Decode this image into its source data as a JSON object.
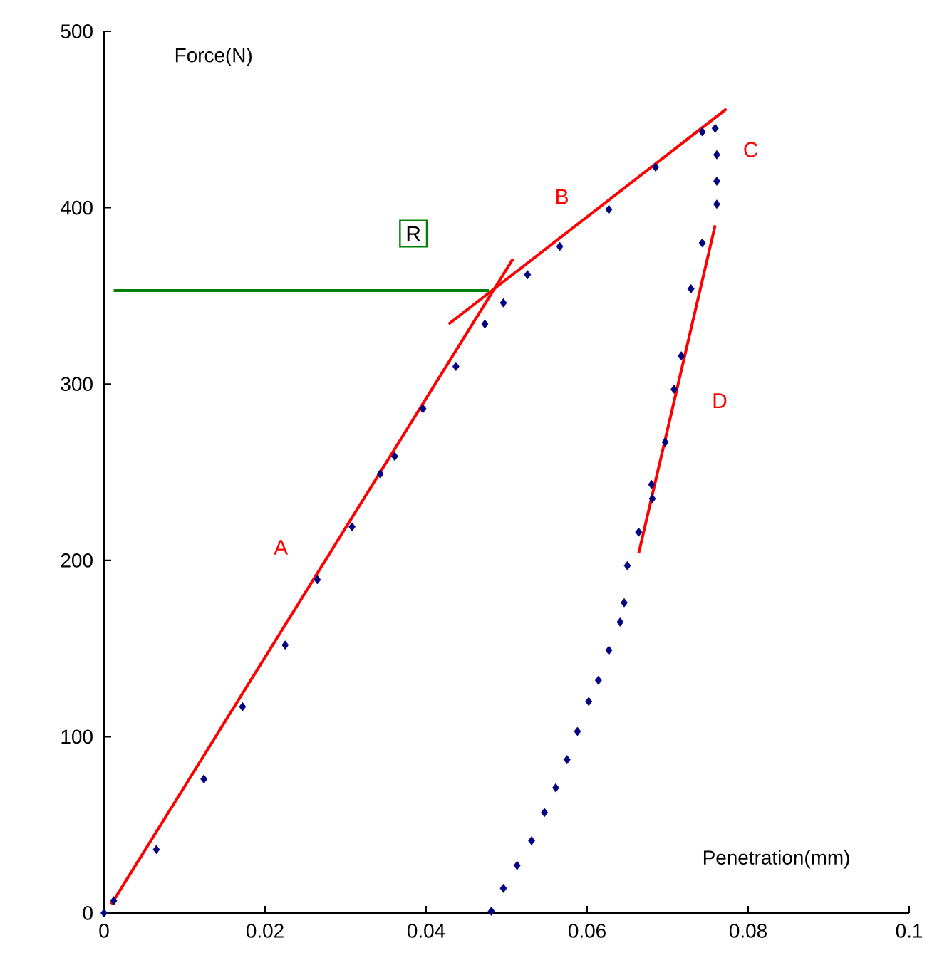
{
  "chart_data": {
    "type": "scatter",
    "xlabel": "Penetration(mm)",
    "ylabel": "Force(N)",
    "xlim": [
      0,
      0.1
    ],
    "ylim": [
      0,
      500
    ],
    "xticks": [
      0,
      0.02,
      0.04,
      0.06,
      0.08,
      0.1
    ],
    "yticks": [
      0,
      100,
      200,
      300,
      400,
      500
    ],
    "grid": false,
    "marker": "diamond",
    "series": [
      {
        "color": "#000080",
        "x": [
          0,
          0.0012,
          0.0065,
          0.0124,
          0.0172,
          0.0225,
          0.0265,
          0.0308,
          0.0343,
          0.0361,
          0.0396,
          0.0437,
          0.0473,
          0.0496,
          0.0526,
          0.0566,
          0.0627,
          0.0685,
          0.0743,
          0.0759,
          0.0761,
          0.0761,
          0.0761,
          0.0743,
          0.0729,
          0.0717,
          0.0708,
          0.0697,
          0.0681,
          0.068,
          0.0664,
          0.065,
          0.0646,
          0.0641,
          0.0627,
          0.0614,
          0.0602,
          0.0588,
          0.0575,
          0.0561,
          0.0547,
          0.0531,
          0.0513,
          0.0496,
          0.0481
        ],
        "values": [
          0,
          7,
          36,
          76,
          117,
          152,
          189,
          219,
          249,
          259,
          286,
          310,
          334,
          346,
          362,
          378,
          399,
          423,
          443,
          445,
          430,
          415,
          402,
          380,
          354,
          316,
          297,
          267,
          235,
          243,
          216,
          197,
          176,
          165,
          149,
          132,
          120,
          103,
          87,
          71,
          57,
          41,
          27,
          14,
          1
        ]
      },
      {
        "type": "line",
        "name": "A",
        "color": "#ff0000",
        "marker": "none",
        "x": [
          0.0009,
          0.0508
        ],
        "values": [
          5,
          371
        ]
      },
      {
        "type": "line",
        "name": "B",
        "color": "#ff0000",
        "marker": "none",
        "x": [
          0.0428,
          0.0773
        ],
        "values": [
          334,
          456
        ]
      },
      {
        "type": "line",
        "name": "D",
        "color": "#ff0000",
        "marker": "none",
        "x": [
          0.0664,
          0.0759
        ],
        "values": [
          204,
          390
        ]
      },
      {
        "type": "line",
        "name": "R",
        "color": "#008000",
        "marker": "none",
        "x": [
          0.0012,
          0.0478
        ],
        "values": [
          353,
          353
        ]
      }
    ],
    "annotations": [
      {
        "text": "C",
        "x": 0.0759,
        "y": 445
      }
    ]
  }
}
